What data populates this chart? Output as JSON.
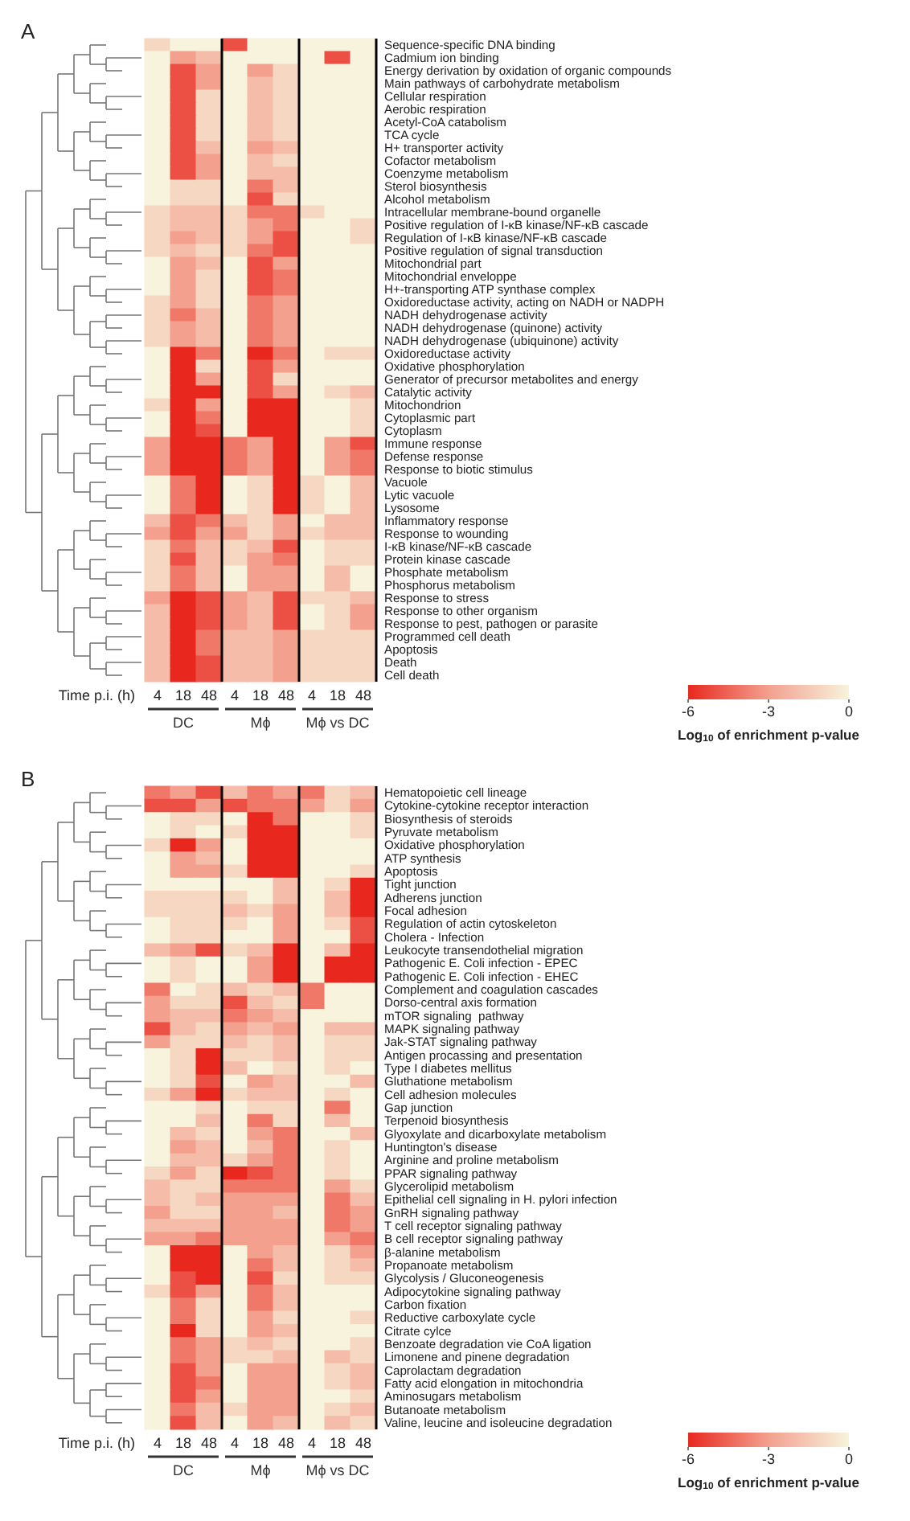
{
  "chart_data": [
    {
      "type": "heatmap",
      "title": "A",
      "xlabel": "Time p.i. (h)",
      "clabel": "Log$_{10}$ of enrichment p-value",
      "clim": [
        -6,
        0
      ],
      "cticks": [
        -6,
        -3,
        0
      ],
      "annotations": [
        "DC",
        "Mϕ",
        "Mϕ vs DC"
      ],
      "categories": [
        "4",
        "18",
        "48",
        "4",
        "18",
        "48",
        "4",
        "18",
        "48"
      ],
      "y_categories": [
        "Sequence-specific DNA binding",
        "Cadmium ion binding",
        "Energy derivation by oxidation of organic compounds",
        "Main pathways of carbohydrate metabolism",
        "Cellular respiration",
        "Aerobic respiration",
        "Acetyl-CoA catabolism",
        "TCA cycle",
        "H+ transporter activity",
        "Cofactor metabolism",
        "Coenzyme metabolism",
        "Sterol biosynthesis",
        "Alcohol metabolism",
        "Intracellular membrane-bound organelle",
        "Positive regulation of I-κB kinase/NF-κB cascade",
        "Regulation of I-κB kinase/NF-κB cascade",
        "Positive regulation of signal transduction",
        "Mitochondrial part",
        "Mitochondrial enveloppe",
        "H+-transporting ATP synthase complex",
        "Oxidoreductase activity, acting on NADH or NADPH",
        "NADH dehydrogenase activity",
        "NADH dehydrogenase (quinone) activity",
        "NADH dehydrogenase (ubiquinone) activity",
        "Oxidoreductase activity",
        "Oxidative phosphorylation",
        "Generator of precursor metabolites and energy",
        "Catalytic activity",
        "Mitochondrion",
        "Cytoplasmic part",
        "Cytoplasm",
        "Immune response",
        "Defense response",
        "Response to biotic stimulus",
        "Vacuole",
        "Lytic vacuole",
        "Lysosome",
        "Inflammatory response",
        "Response to wounding",
        "I-κB kinase/NF-κB cascade",
        "Protein kinase cascade",
        "Phosphate metabolism",
        "Phosphorus metabolism",
        "Response to stress",
        "Response to other organism",
        "Response to pest, pathogen or parasite",
        "Programmed cell death",
        "Apoptosis",
        "Death",
        "Cell death"
      ],
      "cells": [
        [
          -1,
          0,
          0,
          -5,
          0,
          0,
          0,
          0,
          0
        ],
        [
          0,
          -3,
          -2,
          0,
          0,
          0,
          0,
          -5,
          0
        ],
        [
          0,
          -5,
          -3,
          0,
          -3,
          -1,
          0,
          0,
          0
        ],
        [
          0,
          -5,
          -3,
          0,
          -2,
          -1,
          0,
          0,
          0
        ],
        [
          0,
          -5,
          -1,
          0,
          -2,
          -1,
          0,
          0,
          0
        ],
        [
          0,
          -5,
          -1,
          0,
          -2,
          -1,
          0,
          0,
          0
        ],
        [
          0,
          -5,
          -1,
          0,
          -2,
          -1,
          0,
          0,
          0
        ],
        [
          0,
          -5,
          -1,
          0,
          -2,
          -1,
          0,
          0,
          0
        ],
        [
          0,
          -5,
          -2,
          0,
          -3,
          -2,
          0,
          0,
          0
        ],
        [
          0,
          -5,
          -3,
          0,
          -2,
          -1,
          0,
          0,
          0
        ],
        [
          0,
          -5,
          -3,
          0,
          -2,
          -2,
          0,
          0,
          0
        ],
        [
          0,
          -1,
          -1,
          0,
          -4,
          -2,
          0,
          0,
          0
        ],
        [
          0,
          -1,
          -1,
          0,
          -5,
          -1,
          0,
          0,
          0
        ],
        [
          -1,
          -2,
          -2,
          -1,
          -4,
          -4,
          -1,
          0,
          0
        ],
        [
          -1,
          -2,
          -2,
          -1,
          -3,
          -4,
          0,
          0,
          -1
        ],
        [
          -1,
          -3,
          -2,
          -1,
          -3,
          -5,
          0,
          0,
          -1
        ],
        [
          -1,
          -2,
          -1,
          -1,
          -4,
          -5,
          0,
          0,
          0
        ],
        [
          0,
          -3,
          -2,
          0,
          -5,
          -3,
          0,
          0,
          0
        ],
        [
          0,
          -3,
          -1,
          0,
          -5,
          -4,
          0,
          0,
          0
        ],
        [
          0,
          -3,
          -1,
          0,
          -5,
          -4,
          0,
          0,
          0
        ],
        [
          -1,
          -3,
          -1,
          0,
          -4,
          -3,
          0,
          0,
          0
        ],
        [
          -1,
          -4,
          -2,
          0,
          -4,
          -3,
          0,
          0,
          0
        ],
        [
          -1,
          -3,
          -2,
          0,
          -4,
          -3,
          0,
          0,
          0
        ],
        [
          -1,
          -3,
          -2,
          0,
          -4,
          -3,
          0,
          0,
          0
        ],
        [
          0,
          -6,
          -4,
          0,
          -6,
          -4,
          0,
          -1,
          -1
        ],
        [
          0,
          -6,
          -1,
          0,
          -5,
          -3,
          0,
          0,
          0
        ],
        [
          0,
          -6,
          -3,
          0,
          -5,
          -1,
          0,
          0,
          0
        ],
        [
          0,
          -6,
          -6,
          0,
          -5,
          -3,
          0,
          -1,
          -2
        ],
        [
          -1,
          -6,
          -3,
          0,
          -6,
          -6,
          0,
          0,
          -1
        ],
        [
          0,
          -6,
          -4,
          0,
          -6,
          -6,
          0,
          0,
          -1
        ],
        [
          0,
          -6,
          -5,
          0,
          -6,
          -6,
          0,
          0,
          -1
        ],
        [
          -3,
          -6,
          -6,
          -4,
          -3,
          -6,
          0,
          -3,
          -5
        ],
        [
          -3,
          -6,
          -6,
          -4,
          -3,
          -6,
          0,
          -3,
          -4
        ],
        [
          -3,
          -6,
          -6,
          -4,
          -3,
          -6,
          0,
          -3,
          -4
        ],
        [
          0,
          -4,
          -6,
          0,
          -1,
          -6,
          -1,
          0,
          -2
        ],
        [
          0,
          -4,
          -6,
          0,
          -1,
          -6,
          -1,
          0,
          -2
        ],
        [
          0,
          -4,
          -6,
          0,
          -1,
          -6,
          -1,
          0,
          -2
        ],
        [
          -2,
          -5,
          -4,
          -2,
          -1,
          -3,
          0,
          -2,
          -2
        ],
        [
          -3,
          -5,
          -3,
          -3,
          -1,
          -3,
          -1,
          -2,
          -2
        ],
        [
          -1,
          -4,
          -2,
          -1,
          -2,
          -5,
          0,
          -1,
          -1
        ],
        [
          -1,
          -5,
          -2,
          -1,
          -3,
          -4,
          0,
          -1,
          -1
        ],
        [
          -1,
          -4,
          -2,
          0,
          -3,
          -3,
          0,
          -2,
          0
        ],
        [
          -1,
          -4,
          -2,
          0,
          -3,
          -3,
          0,
          -2,
          0
        ],
        [
          -3,
          -6,
          -5,
          -3,
          -2,
          -5,
          -1,
          -1,
          -2
        ],
        [
          -2,
          -6,
          -5,
          -3,
          -2,
          -5,
          0,
          -1,
          -3
        ],
        [
          -2,
          -6,
          -5,
          -3,
          -2,
          -5,
          0,
          -1,
          -3
        ],
        [
          -2,
          -6,
          -4,
          -2,
          -2,
          -3,
          -1,
          -1,
          -1
        ],
        [
          -2,
          -6,
          -4,
          -2,
          -2,
          -3,
          -1,
          -1,
          -1
        ],
        [
          -2,
          -6,
          -5,
          -2,
          -2,
          -3,
          -1,
          -1,
          -1
        ],
        [
          -2,
          -6,
          -5,
          -2,
          -2,
          -3,
          -1,
          -1,
          -1
        ]
      ]
    },
    {
      "type": "heatmap",
      "title": "B",
      "xlabel": "Time p.i. (h)",
      "clabel": "Log$_{10}$ of enrichment p-value",
      "clim": [
        -6,
        0
      ],
      "cticks": [
        -6,
        -3,
        0
      ],
      "annotations": [
        "DC",
        "Mϕ",
        "Mϕ vs DC"
      ],
      "categories": [
        "4",
        "18",
        "48",
        "4",
        "18",
        "48",
        "4",
        "18",
        "48"
      ],
      "y_categories": [
        "Hematopoietic cell lineage",
        "Cytokine-cytokine receptor interaction",
        "Biosynthesis of steroids",
        "Pyruvate metabolism",
        "Oxidative phosphorylation",
        "ATP synthesis",
        "Apoptosis",
        "Tight junction",
        "Adherens junction",
        "Focal adhesion",
        "Regulation of actin cytoskeleton",
        "Cholera - Infection",
        "Leukocyte transendothelial migration",
        "Pathogenic E. Coli infection - EPEC",
        "Pathogenic E. Coli infection - EHEC",
        "Complement and coagulation cascades",
        "Dorso-central axis formation",
        "mTOR signaling  pathway",
        "MAPK signaling pathway",
        "Jak-STAT signaling pathway",
        "Antigen procassing and presentation",
        "Type I diabetes mellitus",
        "Gluthatione metabolism",
        "Cell adhesion molecules",
        "Gap junction",
        "Terpenoid biosynthesis",
        "Glyoxylate and dicarboxylate metabolism",
        "Huntington's disease",
        "Arginine and proline metabolism",
        "PPAR signaling pathway",
        "Glycerolipid metabolism",
        "Epithelial cell signaling in H. pylori infection",
        "GnRH signaling pathway",
        "T cell receptor signaling pathway",
        "B cell receptor signaling pathway",
        "β-alanine metabolism",
        "Propanoate metabolism",
        "Glycolysis / Gluconeogenesis",
        "Adipocytokine signaling pathway",
        "Carbon fixation",
        "Reductive carboxylate cycle",
        "Citrate cylce",
        "Benzoate degradation vie CoA ligation",
        "Limonene and pinene degradation",
        "Caprolactam degradation",
        "Fatty acid elongation in mitochondria",
        "Aminosugars metabolism",
        "Butanoate metabolism",
        "Valine, leucine and isoleucine degradation"
      ],
      "cells": [
        [
          -4,
          -3,
          -5,
          -2,
          -4,
          -3,
          -4,
          -1,
          -2
        ],
        [
          -5,
          -5,
          -3,
          -5,
          -4,
          -4,
          -3,
          -1,
          -3
        ],
        [
          0,
          -1,
          -1,
          0,
          -6,
          -4,
          0,
          0,
          -1
        ],
        [
          0,
          -1,
          0,
          -1,
          -6,
          -6,
          0,
          0,
          -1
        ],
        [
          -1,
          -6,
          -3,
          0,
          -6,
          -6,
          0,
          0,
          0
        ],
        [
          0,
          -3,
          -2,
          0,
          -6,
          -6,
          0,
          0,
          0
        ],
        [
          0,
          -3,
          -3,
          -1,
          -6,
          -6,
          0,
          0,
          -1
        ],
        [
          0,
          0,
          0,
          0,
          0,
          -2,
          0,
          -1,
          -6
        ],
        [
          -1,
          -1,
          -1,
          -1,
          0,
          -2,
          0,
          -2,
          -6
        ],
        [
          -1,
          -1,
          -1,
          -2,
          -1,
          -3,
          0,
          -2,
          -6
        ],
        [
          0,
          -1,
          -1,
          -1,
          0,
          -3,
          0,
          -1,
          -5
        ],
        [
          0,
          -1,
          -1,
          0,
          0,
          -3,
          0,
          0,
          -5
        ],
        [
          -2,
          -3,
          -5,
          -1,
          -2,
          -6,
          0,
          -2,
          -6
        ],
        [
          0,
          -1,
          0,
          0,
          -3,
          -6,
          0,
          -6,
          -6
        ],
        [
          0,
          -1,
          0,
          0,
          -3,
          -6,
          0,
          -6,
          -6
        ],
        [
          -4,
          0,
          -1,
          -2,
          -1,
          -2,
          -4,
          0,
          0
        ],
        [
          -3,
          -1,
          -1,
          -5,
          -2,
          -1,
          -4,
          0,
          0
        ],
        [
          -3,
          -2,
          -2,
          -4,
          -3,
          -2,
          0,
          0,
          0
        ],
        [
          -5,
          -2,
          -1,
          -3,
          -2,
          -3,
          0,
          -2,
          -2
        ],
        [
          -3,
          -1,
          -1,
          -2,
          -1,
          -2,
          0,
          -1,
          -1
        ],
        [
          0,
          -1,
          -6,
          -1,
          -1,
          -2,
          0,
          -1,
          -1
        ],
        [
          0,
          -1,
          -6,
          -2,
          0,
          -1,
          0,
          -1,
          0
        ],
        [
          0,
          -1,
          -5,
          0,
          -3,
          -2,
          0,
          0,
          -2
        ],
        [
          -1,
          -3,
          -6,
          -1,
          -2,
          -2,
          0,
          -1,
          0
        ],
        [
          0,
          0,
          -1,
          0,
          -1,
          -1,
          0,
          -4,
          0
        ],
        [
          0,
          0,
          -2,
          0,
          -4,
          -1,
          0,
          -2,
          0
        ],
        [
          0,
          -2,
          -1,
          0,
          -3,
          -4,
          0,
          0,
          -2
        ],
        [
          0,
          -3,
          -2,
          0,
          -2,
          -4,
          0,
          -1,
          0
        ],
        [
          0,
          -2,
          -2,
          -1,
          -3,
          -4,
          0,
          -1,
          0
        ],
        [
          -1,
          -3,
          -1,
          -6,
          -5,
          -4,
          0,
          -1,
          0
        ],
        [
          -2,
          -1,
          -1,
          -4,
          -4,
          -4,
          0,
          -3,
          -1
        ],
        [
          -2,
          -1,
          -2,
          -3,
          -3,
          -3,
          0,
          -4,
          -2
        ],
        [
          -3,
          -1,
          -1,
          -3,
          -3,
          -2,
          0,
          -4,
          -3
        ],
        [
          -2,
          -2,
          -2,
          -3,
          -3,
          -3,
          0,
          -4,
          -3
        ],
        [
          -3,
          -3,
          -4,
          -3,
          -3,
          -3,
          0,
          -3,
          -4
        ],
        [
          0,
          -6,
          -6,
          0,
          -3,
          -2,
          0,
          -1,
          -3
        ],
        [
          0,
          -6,
          -6,
          0,
          -4,
          -2,
          0,
          -1,
          -2
        ],
        [
          0,
          -5,
          -6,
          0,
          -5,
          -1,
          0,
          -1,
          -1
        ],
        [
          -1,
          -5,
          -3,
          0,
          -4,
          -2,
          0,
          0,
          0
        ],
        [
          0,
          -4,
          -1,
          0,
          -4,
          -2,
          0,
          0,
          0
        ],
        [
          0,
          -4,
          -1,
          0,
          -3,
          -1,
          0,
          0,
          -1
        ],
        [
          0,
          -6,
          -1,
          0,
          -3,
          -2,
          0,
          0,
          0
        ],
        [
          0,
          -4,
          -3,
          -1,
          -2,
          -1,
          0,
          0,
          -1
        ],
        [
          0,
          -4,
          -3,
          -1,
          -1,
          -2,
          0,
          -2,
          -1
        ],
        [
          0,
          -5,
          -3,
          0,
          -3,
          -3,
          0,
          -1,
          -2
        ],
        [
          0,
          -5,
          -4,
          0,
          -3,
          -3,
          0,
          -1,
          -2
        ],
        [
          0,
          -5,
          -3,
          0,
          -3,
          -3,
          0,
          0,
          -1
        ],
        [
          0,
          -4,
          -2,
          -1,
          -3,
          -3,
          0,
          -1,
          -2
        ],
        [
          0,
          -5,
          -2,
          0,
          -3,
          -2,
          0,
          -2,
          -1
        ]
      ]
    }
  ]
}
